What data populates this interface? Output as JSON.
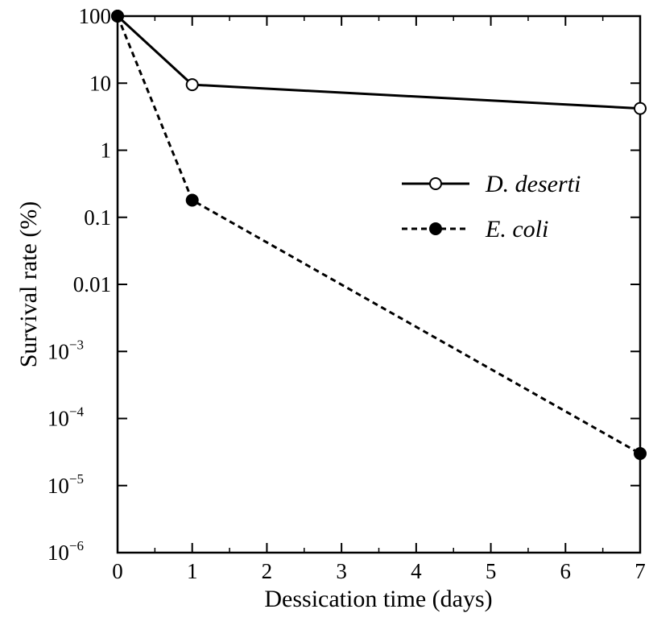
{
  "chart_data": {
    "type": "line",
    "xlabel": "Dessication time (days)",
    "ylabel": "Survival rate (%)",
    "xlim": [
      0,
      7
    ],
    "ylim": [
      1e-06,
      100
    ],
    "yscale": "log",
    "x_ticks": [
      {
        "value": 0,
        "label": "0"
      },
      {
        "value": 1,
        "label": "1"
      },
      {
        "value": 2,
        "label": "2"
      },
      {
        "value": 3,
        "label": "3"
      },
      {
        "value": 4,
        "label": "4"
      },
      {
        "value": 5,
        "label": "5"
      },
      {
        "value": 6,
        "label": "6"
      },
      {
        "value": 7,
        "label": "7"
      }
    ],
    "y_ticks": [
      {
        "value": 100,
        "label": "100"
      },
      {
        "value": 10,
        "label": "10"
      },
      {
        "value": 1,
        "label": "1"
      },
      {
        "value": 0.1,
        "label": "0.1"
      },
      {
        "value": 0.01,
        "label": "0.01"
      },
      {
        "value": 0.001,
        "label": "10",
        "exponent": "−3"
      },
      {
        "value": 0.0001,
        "label": "10",
        "exponent": "−4"
      },
      {
        "value": 1e-05,
        "label": "10",
        "exponent": "−5"
      },
      {
        "value": 1e-06,
        "label": "10",
        "exponent": "−6"
      }
    ],
    "grid": false,
    "legend_position": "right",
    "series": [
      {
        "name": "D. deserti",
        "line_style": "solid",
        "marker": "open-circle",
        "color": "#000000",
        "points": [
          {
            "x": 0,
            "y": 100
          },
          {
            "x": 1,
            "y": 9.5
          },
          {
            "x": 7,
            "y": 4.2
          }
        ]
      },
      {
        "name": "E. coli",
        "line_style": "dashed",
        "marker": "filled-circle",
        "color": "#000000",
        "points": [
          {
            "x": 0,
            "y": 100
          },
          {
            "x": 1,
            "y": 0.18
          },
          {
            "x": 7,
            "y": 3e-05
          }
        ]
      }
    ]
  }
}
